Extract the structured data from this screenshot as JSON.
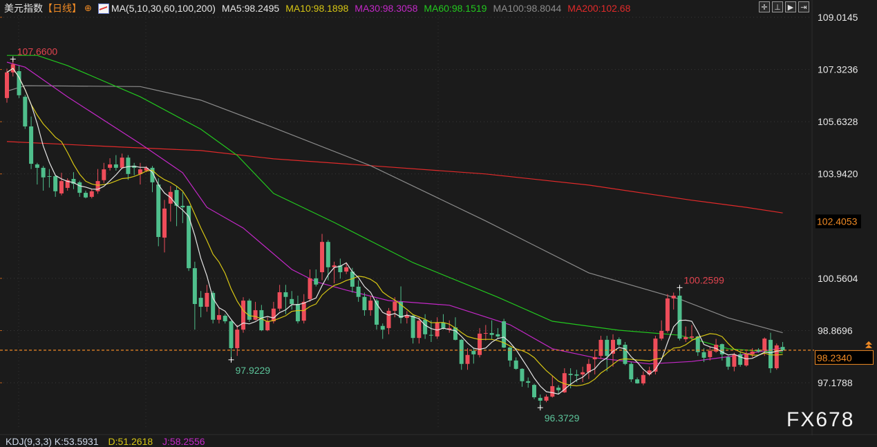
{
  "header": {
    "symbol": "美元指数",
    "period": "【日线】",
    "crosshair_icon": "crosshair-circle-icon",
    "ma_icon": "line-chart-icon",
    "ma_params": "MA(5,10,30,60,100,200)",
    "ma5": "MA5:98.2495",
    "ma10": "MA10:98.1898",
    "ma30": "MA30:98.3058",
    "ma60": "MA60:98.1519",
    "ma100": "MA100:98.8044",
    "ma200": "MA200:102.68"
  },
  "toolbar": {
    "icons": [
      "crosshair-icon",
      "fit-range-icon",
      "step-forward-icon",
      "exit-right-icon"
    ],
    "glyphs": [
      "✛",
      "⊥",
      "▶",
      "⇥"
    ]
  },
  "kdj": {
    "params": "KDJ(9,3,3) K:53.5931",
    "d": "D:51.2618",
    "j": "J:58.2556"
  },
  "watermark": "FX678",
  "colors": {
    "background": "#1b1b1b",
    "up": "#ee4d5a",
    "down": "#4fbf8c",
    "ma5": "#e6e6e6",
    "ma10": "#d7c614",
    "ma30": "#c428c8",
    "ma60": "#22c81e",
    "ma100": "#8c8c8c",
    "ma200": "#e12a2a",
    "last_price": "#f08a24"
  },
  "chart_data": {
    "type": "candlestick",
    "title": "美元指数",
    "y_axis_side": "right",
    "ylim": [
      96.0,
      109.0145
    ],
    "y_ticks": [
      "109.0145",
      "107.3236",
      "105.6328",
      "103.9420",
      "100.5604",
      "98.8696",
      "97.1788"
    ],
    "y_tick_values": [
      109.0145,
      107.3236,
      105.6328,
      103.942,
      100.5604,
      98.8696,
      97.1788
    ],
    "marker_price": {
      "value": 102.4053,
      "label": "102.4053"
    },
    "last_price": {
      "value": 98.234,
      "label": "98.2340"
    },
    "annotations": [
      {
        "index": 1,
        "value": 107.66,
        "label": "107.6600",
        "kind": "high"
      },
      {
        "index": 37,
        "value": 97.9229,
        "label": "97.9229",
        "kind": "low"
      },
      {
        "index": 88,
        "value": 96.3729,
        "label": "96.3729",
        "kind": "low"
      },
      {
        "index": 111,
        "value": 100.2599,
        "label": "100.2599",
        "kind": "high"
      }
    ],
    "ohlc": [
      [
        106.4,
        107.35,
        106.25,
        107.23
      ],
      [
        107.23,
        107.66,
        107.1,
        107.49
      ],
      [
        107.27,
        107.45,
        106.4,
        106.49
      ],
      [
        106.44,
        106.5,
        105.4,
        105.48
      ],
      [
        105.48,
        105.8,
        104.1,
        104.27
      ],
      [
        104.25,
        104.3,
        103.6,
        104.14
      ],
      [
        104.14,
        104.2,
        103.4,
        103.83
      ],
      [
        103.87,
        104.1,
        103.5,
        103.85
      ],
      [
        103.87,
        103.9,
        103.2,
        103.38
      ],
      [
        103.31,
        103.98,
        103.25,
        103.71
      ],
      [
        103.49,
        103.8,
        103.4,
        103.74
      ],
      [
        103.78,
        104.0,
        103.45,
        103.62
      ],
      [
        103.67,
        103.72,
        103.2,
        103.33
      ],
      [
        103.33,
        103.4,
        103.15,
        103.18
      ],
      [
        103.2,
        103.45,
        103.15,
        103.38
      ],
      [
        103.38,
        104.1,
        103.3,
        103.71
      ],
      [
        103.74,
        104.3,
        103.65,
        104.09
      ],
      [
        104.14,
        104.45,
        104.05,
        104.25
      ],
      [
        104.25,
        104.55,
        104.05,
        104.14
      ],
      [
        104.14,
        104.6,
        104.1,
        104.47
      ],
      [
        104.47,
        104.55,
        103.75,
        103.94
      ],
      [
        104.21,
        104.3,
        103.9,
        104.14
      ],
      [
        103.94,
        104.3,
        103.6,
        104.09
      ],
      [
        104.05,
        104.2,
        104.0,
        104.14
      ],
      [
        104.14,
        104.2,
        103.35,
        103.67
      ],
      [
        103.6,
        103.8,
        101.6,
        101.9
      ],
      [
        101.88,
        103.1,
        101.4,
        102.82
      ],
      [
        102.98,
        103.55,
        102.4,
        103.36
      ],
      [
        103.42,
        103.55,
        102.25,
        102.91
      ],
      [
        102.91,
        103.35,
        102.35,
        102.86
      ],
      [
        102.91,
        102.91,
        100.8,
        100.89
      ],
      [
        100.89,
        101.1,
        98.9,
        99.73
      ],
      [
        99.93,
        100.15,
        99.3,
        99.64
      ],
      [
        99.64,
        100.35,
        99.48,
        100.09
      ],
      [
        100.09,
        100.15,
        99.1,
        99.22
      ],
      [
        99.22,
        99.6,
        99.1,
        99.37
      ],
      [
        99.35,
        99.4,
        99.1,
        99.17
      ],
      [
        99.17,
        99.2,
        97.92,
        98.3
      ],
      [
        98.3,
        99.05,
        98.05,
        98.9
      ],
      [
        98.9,
        99.95,
        98.8,
        99.84
      ],
      [
        99.84,
        99.9,
        99.15,
        99.22
      ],
      [
        99.22,
        99.8,
        99.2,
        99.53
      ],
      [
        99.53,
        99.7,
        98.85,
        98.88
      ],
      [
        98.88,
        99.3,
        98.85,
        99.17
      ],
      [
        99.17,
        99.8,
        99.1,
        99.58
      ],
      [
        99.58,
        100.35,
        99.5,
        100.11
      ],
      [
        100.11,
        100.35,
        99.4,
        99.96
      ],
      [
        99.89,
        100.15,
        99.55,
        99.73
      ],
      [
        99.73,
        100.0,
        99.1,
        99.17
      ],
      [
        99.19,
        100.05,
        99.1,
        99.8
      ],
      [
        99.89,
        100.85,
        99.8,
        100.56
      ],
      [
        100.56,
        100.85,
        100.3,
        100.36
      ],
      [
        100.76,
        102.0,
        100.5,
        101.74
      ],
      [
        101.74,
        101.8,
        100.5,
        100.92
      ],
      [
        100.92,
        101.1,
        100.4,
        100.98
      ],
      [
        100.98,
        101.2,
        100.55,
        100.76
      ],
      [
        100.78,
        101.05,
        100.7,
        100.92
      ],
      [
        100.78,
        100.9,
        100.1,
        100.29
      ],
      [
        100.29,
        100.5,
        99.8,
        99.96
      ],
      [
        99.96,
        100.1,
        99.35,
        99.53
      ],
      [
        99.53,
        100.0,
        99.35,
        99.84
      ],
      [
        99.84,
        99.9,
        98.9,
        99.06
      ],
      [
        99.02,
        99.1,
        98.6,
        98.9
      ],
      [
        98.95,
        99.6,
        98.75,
        99.51
      ],
      [
        99.51,
        99.95,
        99.3,
        99.8
      ],
      [
        99.8,
        100.3,
        99.1,
        99.28
      ],
      [
        99.28,
        99.5,
        99.1,
        99.37
      ],
      [
        99.35,
        99.4,
        98.45,
        98.63
      ],
      [
        98.63,
        99.3,
        98.45,
        99.19
      ],
      [
        99.22,
        99.4,
        98.6,
        98.75
      ],
      [
        98.73,
        99.2,
        98.5,
        98.72
      ],
      [
        98.68,
        99.3,
        98.6,
        99.13
      ],
      [
        99.13,
        99.4,
        98.9,
        98.95
      ],
      [
        98.9,
        99.2,
        98.8,
        98.95
      ],
      [
        98.97,
        99.3,
        98.55,
        98.57
      ],
      [
        98.57,
        98.6,
        97.6,
        97.79
      ],
      [
        97.79,
        98.3,
        97.6,
        98.08
      ],
      [
        98.21,
        98.3,
        97.8,
        98.1
      ],
      [
        98.08,
        98.95,
        98.0,
        98.77
      ],
      [
        98.77,
        99.05,
        98.55,
        98.79
      ],
      [
        98.79,
        99.2,
        98.6,
        98.73
      ],
      [
        98.75,
        98.95,
        98.6,
        98.68
      ],
      [
        99.17,
        99.25,
        98.3,
        98.32
      ],
      [
        98.32,
        98.35,
        97.7,
        97.9
      ],
      [
        97.9,
        98.0,
        97.6,
        97.63
      ],
      [
        97.63,
        97.65,
        97.05,
        97.23
      ],
      [
        97.23,
        97.35,
        97.02,
        97.18
      ],
      [
        97.11,
        97.15,
        96.65,
        96.71
      ],
      [
        96.69,
        96.8,
        96.37,
        96.6
      ],
      [
        96.6,
        96.8,
        96.55,
        96.73
      ],
      [
        96.73,
        97.4,
        96.7,
        97.07
      ],
      [
        97.02,
        97.1,
        96.8,
        96.94
      ],
      [
        96.87,
        97.65,
        96.85,
        97.49
      ],
      [
        97.47,
        97.65,
        97.0,
        97.43
      ],
      [
        97.45,
        97.6,
        97.2,
        97.41
      ],
      [
        97.45,
        97.7,
        97.2,
        97.52
      ],
      [
        97.52,
        97.95,
        97.3,
        97.79
      ],
      [
        97.94,
        98.25,
        97.45,
        98.01
      ],
      [
        98.05,
        98.7,
        97.95,
        98.57
      ],
      [
        98.57,
        98.7,
        97.55,
        98.05
      ],
      [
        98.12,
        98.75,
        97.7,
        98.57
      ],
      [
        98.59,
        98.65,
        98.35,
        98.41
      ],
      [
        98.41,
        98.5,
        97.75,
        97.79
      ],
      [
        97.79,
        97.85,
        97.2,
        97.29
      ],
      [
        97.29,
        97.35,
        97.15,
        97.16
      ],
      [
        97.16,
        97.55,
        97.1,
        97.43
      ],
      [
        97.45,
        97.7,
        97.4,
        97.58
      ],
      [
        97.54,
        98.7,
        97.45,
        98.61
      ],
      [
        98.61,
        99.2,
        98.55,
        98.86
      ],
      [
        98.86,
        100.05,
        98.8,
        99.91
      ],
      [
        99.91,
        100.1,
        99.55,
        100.0
      ],
      [
        100.0,
        100.26,
        98.55,
        98.61
      ],
      [
        98.59,
        99.0,
        98.5,
        98.66
      ],
      [
        98.64,
        99.05,
        98.55,
        98.68
      ],
      [
        98.68,
        98.7,
        98.05,
        98.17
      ],
      [
        98.17,
        98.3,
        97.85,
        97.99
      ],
      [
        98.01,
        98.35,
        97.9,
        98.21
      ],
      [
        98.19,
        98.6,
        98.15,
        98.41
      ],
      [
        98.43,
        98.45,
        97.9,
        98.1
      ],
      [
        98.01,
        98.05,
        97.6,
        97.7
      ],
      [
        97.7,
        98.15,
        97.55,
        98.1
      ],
      [
        98.1,
        98.2,
        97.7,
        97.76
      ],
      [
        97.74,
        98.2,
        97.7,
        98.1
      ],
      [
        98.1,
        98.3,
        98.0,
        98.19
      ],
      [
        98.25,
        98.3,
        98.15,
        98.19
      ],
      [
        98.23,
        98.65,
        98.05,
        98.61
      ],
      [
        98.57,
        98.8,
        97.5,
        97.65
      ],
      [
        97.65,
        98.45,
        97.6,
        98.39
      ],
      [
        98.34,
        98.5,
        98.2,
        98.234
      ]
    ],
    "ohlc_fields": [
      "open",
      "high",
      "low",
      "close"
    ],
    "moving_averages": {
      "ma30": [
        [
          0,
          107.56
        ],
        [
          3,
          107.4
        ],
        [
          10,
          106.44
        ],
        [
          22,
          104.92
        ],
        [
          29,
          103.98
        ],
        [
          33,
          102.86
        ],
        [
          39,
          102.19
        ],
        [
          47,
          100.85
        ],
        [
          51,
          100.45
        ],
        [
          56,
          100.18
        ],
        [
          63,
          99.84
        ],
        [
          73,
          99.69
        ],
        [
          83,
          99.06
        ],
        [
          90,
          98.28
        ],
        [
          97,
          97.99
        ],
        [
          106,
          97.79
        ],
        [
          113,
          97.87
        ],
        [
          120,
          98.05
        ],
        [
          128,
          98.31
        ]
      ],
      "ma60": [
        [
          0,
          107.78
        ],
        [
          5,
          107.78
        ],
        [
          10,
          107.45
        ],
        [
          22,
          106.44
        ],
        [
          32,
          105.39
        ],
        [
          38,
          104.54
        ],
        [
          44,
          103.31
        ],
        [
          54,
          102.37
        ],
        [
          67,
          101.07
        ],
        [
          81,
          99.95
        ],
        [
          90,
          99.17
        ],
        [
          101,
          98.88
        ],
        [
          111,
          98.72
        ],
        [
          119,
          98.28
        ],
        [
          128,
          98.15
        ]
      ],
      "ma100": [
        [
          0,
          106.62
        ],
        [
          3,
          106.8
        ],
        [
          22,
          106.77
        ],
        [
          32,
          106.33
        ],
        [
          44,
          105.44
        ],
        [
          60,
          104.21
        ],
        [
          79,
          102.42
        ],
        [
          96,
          100.74
        ],
        [
          111,
          99.89
        ],
        [
          119,
          99.28
        ],
        [
          128,
          98.8
        ]
      ],
      "ma200": [
        [
          0,
          104.99
        ],
        [
          19,
          104.81
        ],
        [
          32,
          104.7
        ],
        [
          44,
          104.43
        ],
        [
          60,
          104.21
        ],
        [
          79,
          103.94
        ],
        [
          96,
          103.58
        ],
        [
          113,
          103.09
        ],
        [
          122,
          102.86
        ],
        [
          128,
          102.68
        ]
      ]
    }
  }
}
